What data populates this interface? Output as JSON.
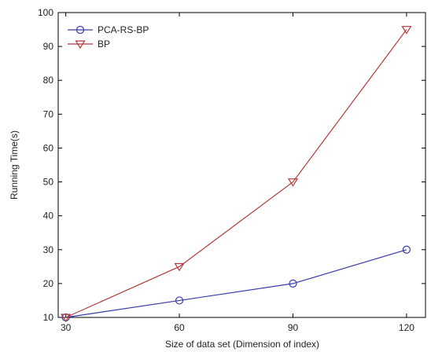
{
  "chart_data": {
    "type": "line",
    "title": "",
    "xlabel": "Size of data set (Dimension of index)",
    "ylabel": "Running Time(s)",
    "x": [
      30,
      60,
      90,
      120
    ],
    "x_tick_labels": [
      "30",
      "60",
      "90",
      "120"
    ],
    "xlim": [
      28,
      125
    ],
    "ylim": [
      10,
      100
    ],
    "y_ticks": [
      10,
      20,
      30,
      40,
      50,
      60,
      70,
      80,
      90,
      100
    ],
    "grid": false,
    "legend_position": "top-left",
    "series": [
      {
        "name": "PCA-RS-BP",
        "values": [
          10,
          15,
          20,
          30
        ],
        "color": "#3a3aa8",
        "marker": "circle"
      },
      {
        "name": "BP",
        "values": [
          10,
          25,
          50,
          95
        ],
        "color": "#b23a3a",
        "marker": "triangle-down"
      }
    ]
  }
}
